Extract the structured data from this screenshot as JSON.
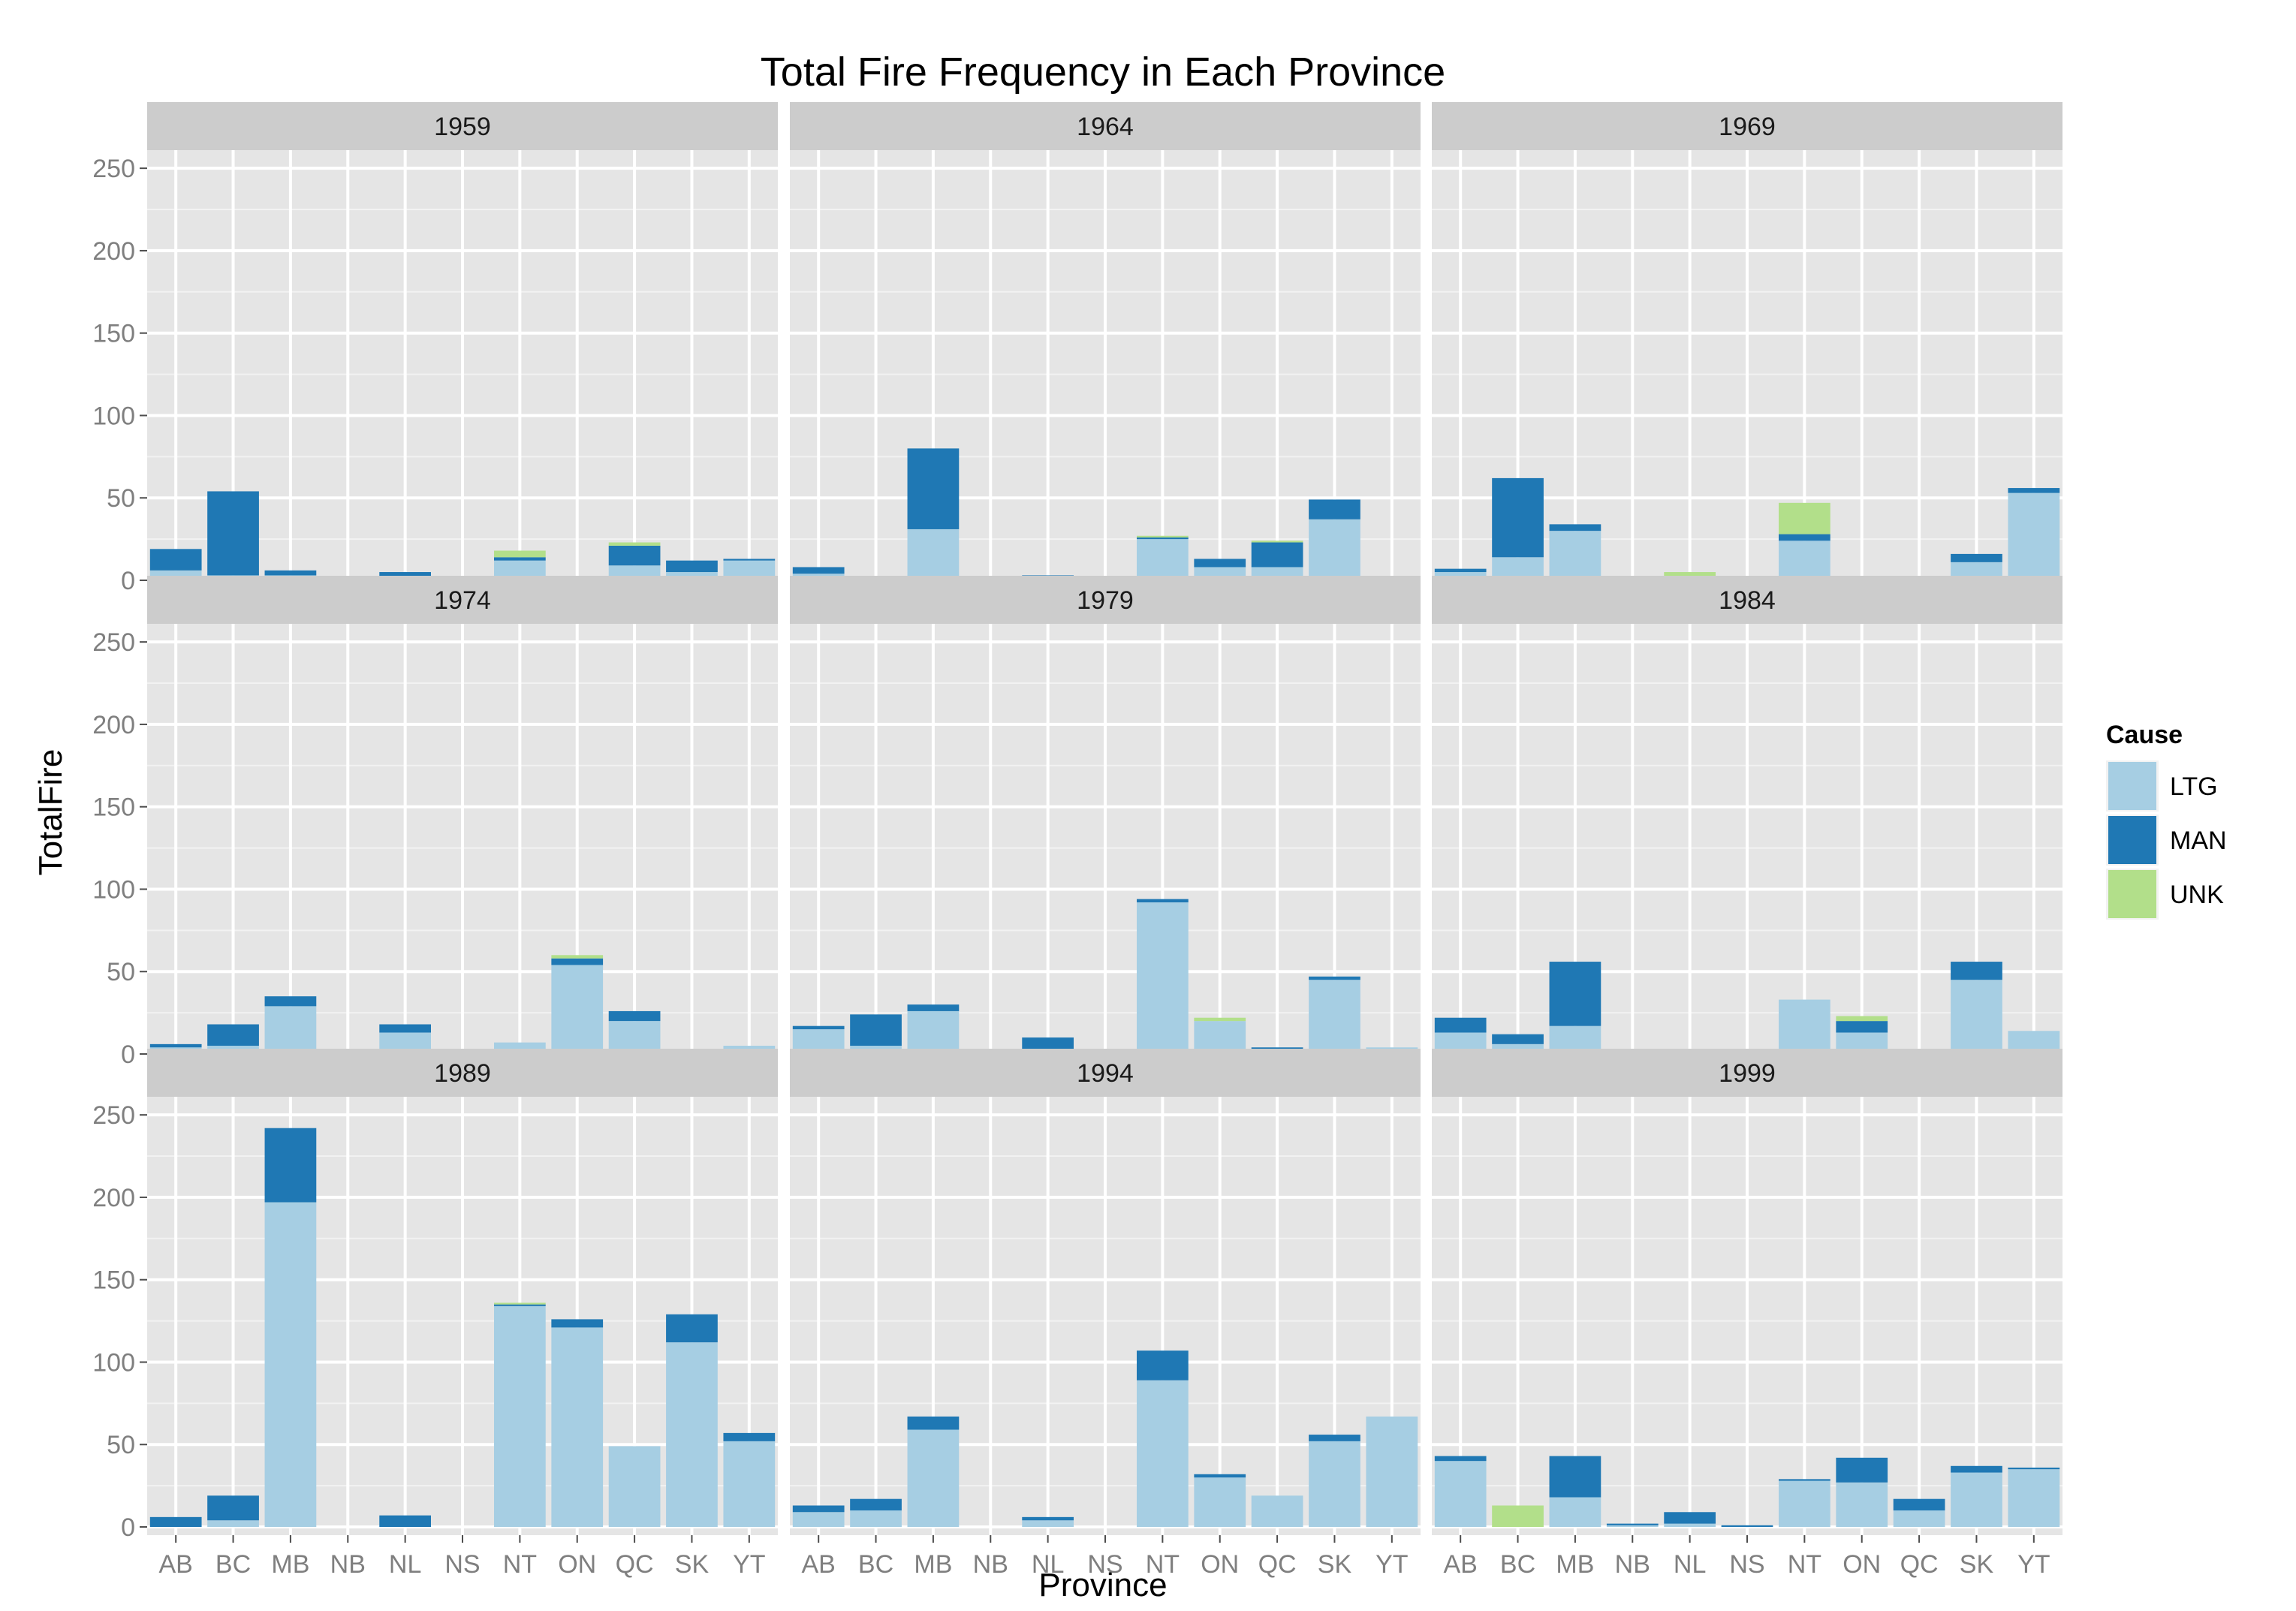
{
  "chart_data": {
    "type": "bar",
    "stacked": true,
    "faceted": true,
    "title": "Total Fire Frequency in Each Province",
    "xlabel": "Province",
    "ylabel": "TotalFire",
    "ylim": [
      0,
      260
    ],
    "yticks": [
      0,
      50,
      100,
      150,
      200,
      250
    ],
    "grid": true,
    "legend_position": "right",
    "legend": {
      "title": "Cause",
      "items": [
        {
          "name": "LTG",
          "color": "#a6cee3"
        },
        {
          "name": "MAN",
          "color": "#1f78b4"
        },
        {
          "name": "UNK",
          "color": "#b2df8a"
        }
      ]
    },
    "categories": [
      "AB",
      "BC",
      "MB",
      "NB",
      "NL",
      "NS",
      "NT",
      "ON",
      "QC",
      "SK",
      "YT"
    ],
    "facets": [
      {
        "label": "1959",
        "series": [
          {
            "name": "LTG",
            "values": [
              6,
              3,
              3,
              0,
              0,
              0,
              12,
              0,
              9,
              5,
              12
            ]
          },
          {
            "name": "MAN",
            "values": [
              13,
              51,
              3,
              0,
              5,
              0,
              2,
              1,
              12,
              7,
              1
            ]
          },
          {
            "name": "UNK",
            "values": [
              0,
              0,
              0,
              0,
              0,
              0,
              4,
              0,
              2,
              0,
              0
            ]
          }
        ]
      },
      {
        "label": "1964",
        "series": [
          {
            "name": "LTG",
            "values": [
              4,
              0,
              31,
              0,
              0,
              0,
              25,
              8,
              8,
              37,
              0
            ]
          },
          {
            "name": "MAN",
            "values": [
              4,
              2,
              49,
              0,
              3,
              0,
              1,
              5,
              15,
              12,
              0
            ]
          },
          {
            "name": "UNK",
            "values": [
              0,
              0,
              0,
              0,
              0,
              0,
              1,
              0,
              1,
              0,
              0
            ]
          }
        ]
      },
      {
        "label": "1969",
        "series": [
          {
            "name": "LTG",
            "values": [
              5,
              14,
              30,
              0,
              0,
              0,
              24,
              1,
              0,
              11,
              53
            ]
          },
          {
            "name": "MAN",
            "values": [
              2,
              48,
              4,
              0,
              0,
              0,
              4,
              0,
              2,
              5,
              3
            ]
          },
          {
            "name": "UNK",
            "values": [
              0,
              0,
              0,
              0,
              5,
              0,
              19,
              0,
              0,
              0,
              0
            ]
          }
        ]
      },
      {
        "label": "1974",
        "series": [
          {
            "name": "LTG",
            "values": [
              4,
              5,
              29,
              0,
              13,
              0,
              7,
              54,
              20,
              0,
              5
            ]
          },
          {
            "name": "MAN",
            "values": [
              2,
              13,
              6,
              0,
              5,
              0,
              0,
              4,
              6,
              0,
              0
            ]
          },
          {
            "name": "UNK",
            "values": [
              0,
              0,
              0,
              0,
              0,
              0,
              0,
              2,
              0,
              0,
              0
            ]
          }
        ]
      },
      {
        "label": "1979",
        "series": [
          {
            "name": "LTG",
            "values": [
              15,
              5,
              26,
              0,
              3,
              0,
              92,
              20,
              3,
              45,
              4
            ]
          },
          {
            "name": "MAN",
            "values": [
              2,
              19,
              4,
              0,
              7,
              0,
              2,
              0,
              1,
              2,
              0
            ]
          },
          {
            "name": "UNK",
            "values": [
              0,
              0,
              0,
              0,
              0,
              0,
              0,
              2,
              0,
              0,
              0
            ]
          }
        ]
      },
      {
        "label": "1984",
        "series": [
          {
            "name": "LTG",
            "values": [
              13,
              6,
              17,
              0,
              1,
              0,
              33,
              13,
              1,
              45,
              14
            ]
          },
          {
            "name": "MAN",
            "values": [
              9,
              6,
              39,
              0,
              2,
              0,
              0,
              7,
              0,
              11,
              0
            ]
          },
          {
            "name": "UNK",
            "values": [
              0,
              0,
              0,
              0,
              0,
              0,
              0,
              3,
              0,
              0,
              0
            ]
          }
        ]
      },
      {
        "label": "1989",
        "series": [
          {
            "name": "LTG",
            "values": [
              0,
              4,
              197,
              0,
              0,
              0,
              134,
              121,
              49,
              112,
              52
            ]
          },
          {
            "name": "MAN",
            "values": [
              6,
              15,
              45,
              0,
              7,
              0,
              1,
              5,
              0,
              17,
              5
            ]
          },
          {
            "name": "UNK",
            "values": [
              0,
              0,
              0,
              0,
              0,
              0,
              1,
              0,
              0,
              0,
              0
            ]
          }
        ]
      },
      {
        "label": "1994",
        "series": [
          {
            "name": "LTG",
            "values": [
              9,
              10,
              59,
              0,
              4,
              0,
              89,
              30,
              19,
              52,
              67
            ]
          },
          {
            "name": "MAN",
            "values": [
              4,
              7,
              8,
              0,
              2,
              0,
              18,
              2,
              0,
              4,
              0
            ]
          },
          {
            "name": "UNK",
            "values": [
              0,
              0,
              0,
              0,
              0,
              0,
              0,
              0,
              0,
              0,
              0
            ]
          }
        ]
      },
      {
        "label": "1999",
        "series": [
          {
            "name": "LTG",
            "values": [
              40,
              0,
              18,
              1,
              2,
              0,
              28,
              27,
              10,
              33,
              35
            ]
          },
          {
            "name": "MAN",
            "values": [
              3,
              0,
              25,
              1,
              7,
              1,
              1,
              15,
              7,
              4,
              1
            ]
          },
          {
            "name": "UNK",
            "values": [
              0,
              13,
              0,
              0,
              0,
              0,
              0,
              0,
              0,
              0,
              0
            ]
          }
        ]
      }
    ]
  }
}
